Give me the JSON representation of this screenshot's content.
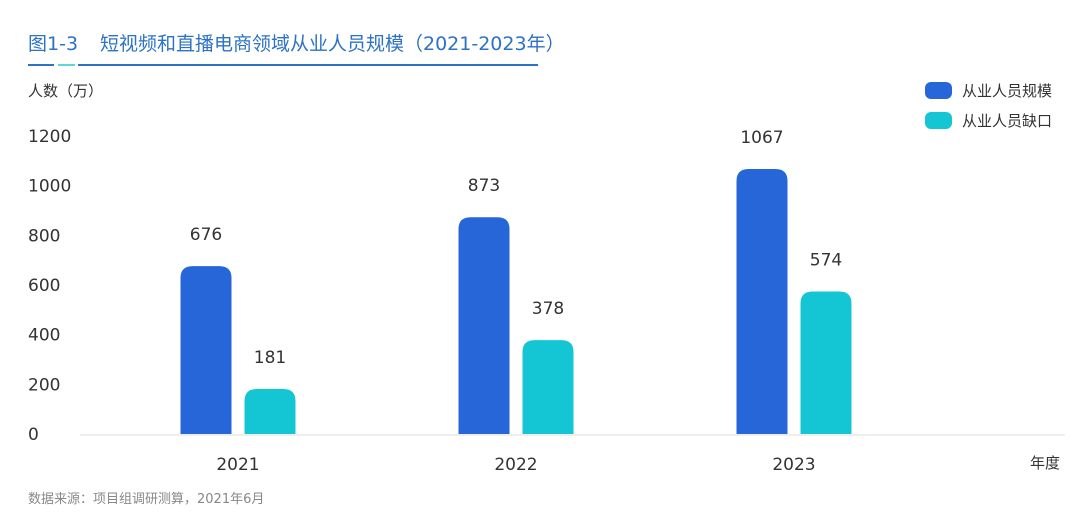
{
  "chart_data": {
    "type": "bar",
    "figure_label": "图1-3",
    "title": "短视频和直播电商领域从业人员规模（2021-2023年）",
    "ylabel": "人数（万）",
    "xlabel": "年度",
    "categories": [
      "2021",
      "2022",
      "2023"
    ],
    "series": [
      {
        "name": "从业人员规模",
        "values": [
          676,
          873,
          1067
        ],
        "color": "#2766D9"
      },
      {
        "name": "从业人员缺口",
        "values": [
          181,
          378,
          574
        ],
        "color": "#14C6D4"
      }
    ],
    "ylim": [
      0,
      1200
    ],
    "yticks": [
      "0",
      "200",
      "400",
      "600",
      "800",
      "1000",
      "1200"
    ],
    "grid": false,
    "legend": "top-right",
    "source": "数据来源：项目组调研测算，2021年6月"
  },
  "colors": {
    "title": "#2C72C6",
    "axis_text": "#333333",
    "source_text": "#888888"
  }
}
